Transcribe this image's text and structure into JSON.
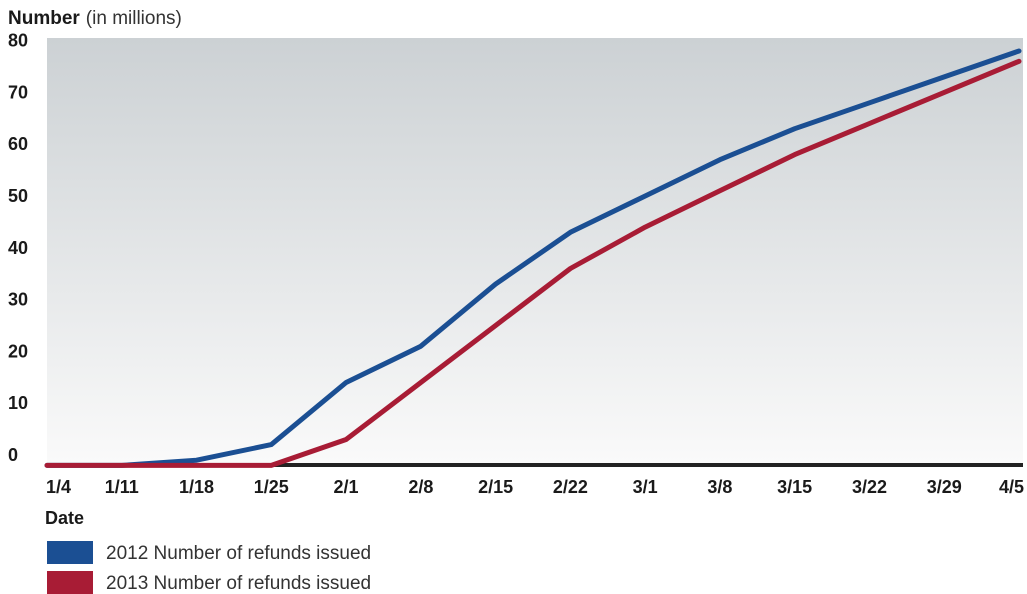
{
  "chart_data": {
    "type": "line",
    "ylabel_bold": "Number",
    "ylabel_light": "(in millions)",
    "xlabel": "Date",
    "categories": [
      "1/4",
      "1/11",
      "1/18",
      "1/25",
      "2/1",
      "2/8",
      "2/15",
      "2/22",
      "3/1",
      "3/8",
      "3/15",
      "3/22",
      "3/29",
      "4/5"
    ],
    "y_ticks": [
      0,
      10,
      20,
      30,
      40,
      50,
      60,
      70,
      80
    ],
    "ylim": [
      -2,
      80
    ],
    "grid": false,
    "legend_position": "bottom-left",
    "series": [
      {
        "name": "2012 Number of refunds issued",
        "color": "#1b4f93",
        "values": [
          -2,
          -2,
          -1,
          2,
          14,
          21,
          33,
          43,
          50,
          57,
          63,
          68,
          73,
          78
        ]
      },
      {
        "name": "2013 Number of refunds issued",
        "color": "#a81c35",
        "values": [
          -2,
          -2,
          -2,
          -2,
          3,
          14,
          25,
          36,
          44,
          51,
          58,
          64,
          70,
          76
        ]
      }
    ]
  }
}
